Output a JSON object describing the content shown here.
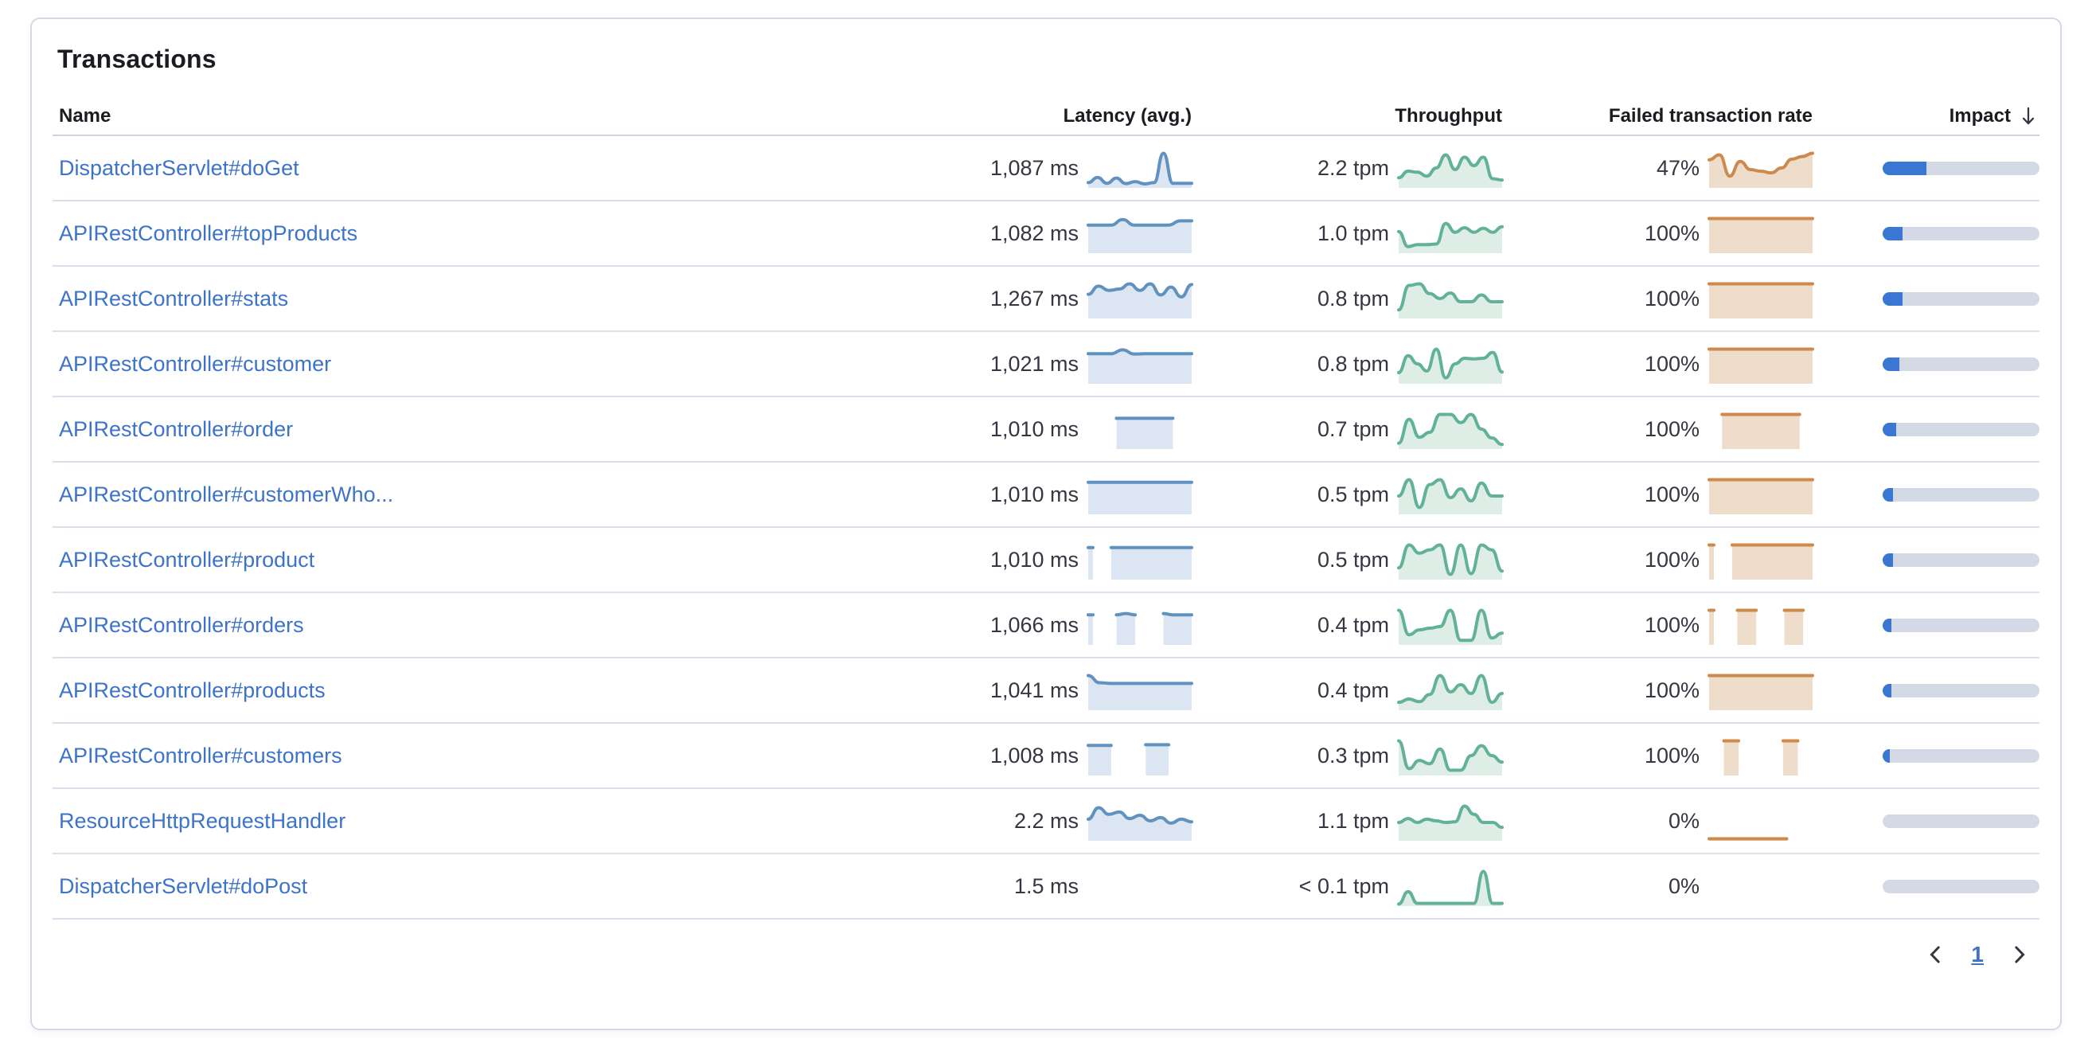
{
  "card": {
    "title": "Transactions"
  },
  "table": {
    "columns": {
      "name": "Name",
      "latency": "Latency (avg.)",
      "throughput": "Throughput",
      "failed": "Failed transaction rate",
      "impact": "Impact"
    },
    "sort": {
      "column": "impact",
      "direction": "desc"
    },
    "rows": [
      {
        "name": "DispatcherServlet#doGet",
        "latency": "1,087 ms",
        "throughput": "2.2 tpm",
        "failed": "47%",
        "impact_pct": 28,
        "latency_spark": [
          0.1,
          0.26,
          0.08,
          0.24,
          0.07,
          0.13,
          0.06,
          0.1,
          1.0,
          0.08,
          0.08,
          0.08
        ],
        "throughput_spark": [
          0.25,
          0.45,
          0.42,
          0.3,
          0.55,
          0.95,
          0.5,
          0.88,
          0.62,
          0.88,
          0.22,
          0.18
        ],
        "failed_spark": [
          0.8,
          0.95,
          0.3,
          0.75,
          0.5,
          0.45,
          0.4,
          0.55,
          0.82,
          0.9,
          1.0
        ]
      },
      {
        "name": "APIRestController#topProducts",
        "latency": "1,082 ms",
        "throughput": "1.0 tpm",
        "failed": "100%",
        "impact_pct": 12.5,
        "latency_spark": [
          0.8,
          0.8,
          0.8,
          0.97,
          0.8,
          0.8,
          0.8,
          0.8,
          0.93,
          0.93
        ],
        "throughput_spark": [
          0.6,
          0.14,
          0.2,
          0.2,
          0.22,
          0.85,
          0.58,
          0.72,
          0.58,
          0.7,
          0.58,
          0.75
        ],
        "failed_spark": [
          1,
          1,
          1,
          1,
          1,
          1,
          1,
          1
        ]
      },
      {
        "name": "APIRestController#stats",
        "latency": "1,267 ms",
        "throughput": "0.8 tpm",
        "failed": "100%",
        "impact_pct": 12.5,
        "latency_spark": [
          0.68,
          0.93,
          0.8,
          0.84,
          1.0,
          0.8,
          1.0,
          0.66,
          0.9,
          0.6,
          0.98
        ],
        "throughput_spark": [
          0.2,
          0.95,
          1.0,
          0.7,
          0.55,
          0.72,
          0.45,
          0.45,
          0.66,
          0.45,
          0.45
        ],
        "failed_spark": [
          1,
          1,
          1,
          1,
          1,
          1,
          1,
          1
        ]
      },
      {
        "name": "APIRestController#customer",
        "latency": "1,021 ms",
        "throughput": "0.8 tpm",
        "failed": "100%",
        "impact_pct": 10.5,
        "latency_spark": [
          0.86,
          0.86,
          0.86,
          0.98,
          0.85,
          0.86,
          0.86,
          0.86,
          0.86,
          0.86
        ],
        "throughput_spark": [
          0.28,
          0.8,
          0.55,
          0.33,
          1.0,
          0.12,
          0.55,
          0.72,
          0.7,
          0.72,
          0.9,
          0.3
        ],
        "failed_spark": [
          1,
          1,
          1,
          1,
          1,
          1,
          1,
          1
        ]
      },
      {
        "name": "APIRestController#order",
        "latency": "1,010 ms",
        "throughput": "0.7 tpm",
        "failed": "100%",
        "impact_pct": 8.5,
        "latency_spark": [
          null,
          null,
          null,
          0.88,
          0.88,
          0.88,
          0.88,
          0.88,
          0.88,
          0.88,
          null,
          null
        ],
        "throughput_spark": [
          0.12,
          0.85,
          0.3,
          0.45,
          1.0,
          1.0,
          0.75,
          1.0,
          0.55,
          0.28,
          0.08
        ],
        "failed_spark": [
          null,
          1,
          1,
          1,
          1,
          1,
          1,
          1,
          null
        ]
      },
      {
        "name": "APIRestController#customerWho...",
        "latency": "1,010 ms",
        "throughput": "0.5 tpm",
        "failed": "100%",
        "impact_pct": 6.5,
        "latency_spark": [
          0.92,
          0.92,
          0.92,
          0.92,
          0.92,
          0.92,
          0.92,
          0.92
        ],
        "throughput_spark": [
          0.5,
          1.0,
          0.15,
          0.85,
          1.0,
          0.45,
          0.72,
          0.35,
          0.9,
          0.5,
          0.5
        ],
        "failed_spark": [
          1,
          1,
          1,
          1,
          1,
          1,
          1,
          1
        ]
      },
      {
        "name": "APIRestController#product",
        "latency": "1,010 ms",
        "throughput": "0.5 tpm",
        "failed": "100%",
        "impact_pct": 6.5,
        "latency_spark": [
          0.92,
          null,
          0.92,
          0.92,
          0.92,
          0.92,
          0.92,
          0.92,
          0.92,
          0.92
        ],
        "throughput_spark": [
          0.3,
          1.0,
          0.75,
          0.85,
          1.0,
          0.1,
          1.0,
          0.12,
          1.0,
          0.85,
          0.2
        ],
        "failed_spark": [
          1,
          null,
          1,
          1,
          1,
          1,
          1,
          1,
          1,
          1
        ]
      },
      {
        "name": "APIRestController#orders",
        "latency": "1,066 ms",
        "throughput": "0.4 tpm",
        "failed": "100%",
        "impact_pct": 5.5,
        "latency_spark": [
          0.86,
          null,
          null,
          0.86,
          0.9,
          0.86,
          null,
          null,
          0.9,
          0.86,
          0.86,
          0.86
        ],
        "throughput_spark": [
          1.0,
          0.25,
          0.4,
          0.45,
          0.5,
          1.0,
          0.08,
          0.08,
          1.0,
          0.15,
          0.3
        ],
        "failed_spark": [
          1,
          null,
          null,
          1,
          1,
          1,
          null,
          null,
          1,
          1,
          1,
          null
        ]
      },
      {
        "name": "APIRestController#products",
        "latency": "1,041 ms",
        "throughput": "0.4 tpm",
        "failed": "100%",
        "impact_pct": 5.5,
        "latency_spark": [
          1.0,
          0.78,
          0.76,
          0.76,
          0.76,
          0.76,
          0.76,
          0.76,
          0.76,
          0.76
        ],
        "throughput_spark": [
          0.18,
          0.28,
          0.2,
          0.42,
          1.0,
          0.5,
          0.72,
          0.45,
          1.0,
          0.18,
          0.45
        ],
        "failed_spark": [
          1,
          1,
          1,
          1,
          1,
          1,
          1,
          1
        ]
      },
      {
        "name": "APIRestController#customers",
        "latency": "1,008 ms",
        "throughput": "0.3 tpm",
        "failed": "100%",
        "impact_pct": 4.7,
        "latency_spark": [
          0.86,
          0.86,
          0.86,
          null,
          null,
          0.88,
          0.88,
          0.88,
          null,
          null
        ],
        "throughput_spark": [
          1.0,
          0.15,
          0.4,
          0.3,
          0.75,
          0.1,
          0.1,
          0.55,
          0.85,
          0.55,
          0.35
        ],
        "failed_spark": [
          null,
          1,
          1,
          null,
          null,
          1,
          1,
          null
        ]
      },
      {
        "name": "ResourceHttpRequestHandler",
        "latency": "2.2 ms",
        "throughput": "1.1 tpm",
        "failed": "0%",
        "impact_pct": 0,
        "latency_spark": [
          0.6,
          0.95,
          0.75,
          0.82,
          0.62,
          0.72,
          0.55,
          0.65,
          0.48,
          0.6,
          0.52
        ],
        "throughput_spark": [
          0.5,
          0.62,
          0.5,
          0.6,
          0.55,
          0.5,
          0.52,
          1.0,
          0.75,
          0.5,
          0.5,
          0.35
        ],
        "failed_spark": [
          0,
          0,
          0,
          0,
          0,
          0,
          0,
          null,
          null
        ]
      },
      {
        "name": "DispatcherServlet#doPost",
        "latency": "1.5 ms",
        "throughput": "< 0.1 tpm",
        "failed": "0%",
        "impact_pct": 0,
        "latency_spark": null,
        "throughput_spark": [
          0,
          0.38,
          0.02,
          0.02,
          0.02,
          0.02,
          0.02,
          0.02,
          0.02,
          1.0,
          0.02,
          0.02
        ],
        "failed_spark": null
      }
    ]
  },
  "pagination": {
    "page": "1"
  },
  "colors": {
    "link": "#3d73c9",
    "text": "#343741",
    "row_border": "#dae0eb",
    "latency_line": "#6092c0",
    "latency_fill": "#dce6f2",
    "throughput_line": "#61b296",
    "throughput_fill": "#deede6",
    "failed_line": "#ce8a4d",
    "failed_fill": "#efddcb",
    "impact_fill": "#3a77d2",
    "impact_track": "#d3dae6"
  }
}
